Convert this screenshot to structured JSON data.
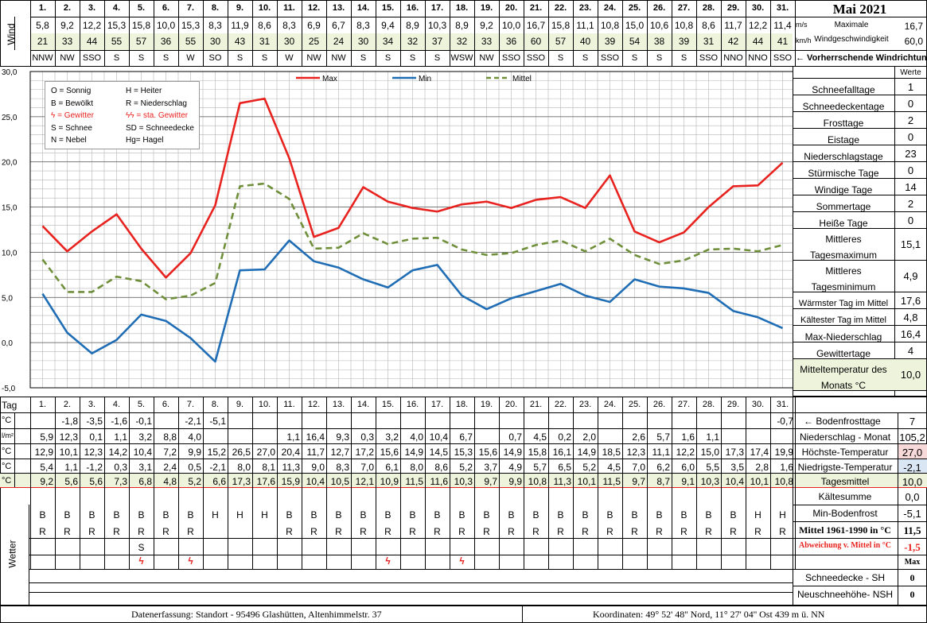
{
  "title": "Mai 2021",
  "days": [
    "1.",
    "2.",
    "3.",
    "4.",
    "5.",
    "6.",
    "7.",
    "8.",
    "9.",
    "10.",
    "11.",
    "12.",
    "13.",
    "14.",
    "15.",
    "16.",
    "17.",
    "18.",
    "19.",
    "20.",
    "21.",
    "22.",
    "23.",
    "24.",
    "25.",
    "26.",
    "27.",
    "28.",
    "29.",
    "30.",
    "31."
  ],
  "wind": {
    "label": "Wind",
    "ms": [
      "5,8",
      "9,2",
      "12,2",
      "15,3",
      "15,8",
      "10,0",
      "15,3",
      "8,3",
      "11,9",
      "8,6",
      "8,3",
      "6,9",
      "6,7",
      "8,3",
      "9,4",
      "8,9",
      "10,3",
      "8,9",
      "9,2",
      "10,0",
      "16,7",
      "15,8",
      "11,1",
      "10,8",
      "15,0",
      "10,6",
      "10,8",
      "8,6",
      "11,7",
      "12,2",
      "11,4"
    ],
    "kmh": [
      "21",
      "33",
      "44",
      "55",
      "57",
      "36",
      "55",
      "30",
      "43",
      "31",
      "30",
      "25",
      "24",
      "30",
      "34",
      "32",
      "37",
      "32",
      "33",
      "36",
      "60",
      "57",
      "40",
      "39",
      "54",
      "38",
      "39",
      "31",
      "42",
      "44",
      "41"
    ],
    "dir": [
      "NNW",
      "NW",
      "SSO",
      "S",
      "S",
      "S",
      "W",
      "SO",
      "S",
      "S",
      "W",
      "NW",
      "NW",
      "S",
      "S",
      "S",
      "S",
      "WSW",
      "NW",
      "SSO",
      "SSO",
      "S",
      "S",
      "SSO",
      "S",
      "S",
      "S",
      "SSO",
      "NNO",
      "NNO",
      "SSO"
    ],
    "unit_ms": "m/s",
    "unit_kmh": "km/h",
    "max_label": "Maximale",
    "speed_label": "Windgeschwindigkeit",
    "max_ms": "16,7",
    "max_kmh": "60,0",
    "dir_note": "← Vorherrschende Windrichtung"
  },
  "legend_box": [
    [
      "O = Sonnig",
      "H = Heiter"
    ],
    [
      "B = Bewölkt",
      "R = Niederschlag"
    ],
    [
      "ϟ = Gewitter",
      "ϟϟ = sta. Gewitter"
    ],
    [
      "S = Schnee",
      "SD = Schneedecke"
    ],
    [
      "N = Nebel",
      "Hg= Hagel"
    ]
  ],
  "chart_data": {
    "type": "line",
    "x": [
      "1.",
      "2.",
      "3.",
      "4.",
      "5.",
      "6.",
      "7.",
      "8.",
      "9.",
      "10.",
      "11.",
      "12.",
      "13.",
      "14.",
      "15.",
      "16.",
      "17.",
      "18.",
      "19.",
      "20.",
      "21.",
      "22.",
      "23.",
      "24.",
      "25.",
      "26.",
      "27.",
      "28.",
      "29.",
      "30.",
      "31."
    ],
    "ylim": [
      -5,
      30
    ],
    "yticks": [
      "30,0",
      "25,0",
      "20,0",
      "15,0",
      "10,0",
      "5,0",
      "0,0",
      "-5,0"
    ],
    "grid": true,
    "legend_position": "top",
    "series": [
      {
        "name": "Max",
        "color": "#e8231f",
        "dash": false,
        "values": [
          12.9,
          10.1,
          12.3,
          14.2,
          10.4,
          7.2,
          9.9,
          15.2,
          26.5,
          27.0,
          20.4,
          11.7,
          12.7,
          17.2,
          15.6,
          14.9,
          14.5,
          15.3,
          15.6,
          14.9,
          15.8,
          16.1,
          14.9,
          18.5,
          12.3,
          11.1,
          12.2,
          15.0,
          17.3,
          17.4,
          19.9
        ]
      },
      {
        "name": "Min",
        "color": "#1f6db5",
        "dash": false,
        "values": [
          5.4,
          1.1,
          -1.2,
          0.3,
          3.1,
          2.4,
          0.5,
          -2.1,
          8.0,
          8.1,
          11.3,
          9.0,
          8.3,
          7.0,
          6.1,
          8.0,
          8.6,
          5.2,
          3.7,
          4.9,
          5.7,
          6.5,
          5.2,
          4.5,
          7.0,
          6.2,
          6.0,
          5.5,
          3.5,
          2.8,
          1.6
        ]
      },
      {
        "name": "Mittel",
        "color": "#6f8f3a",
        "dash": true,
        "values": [
          9.2,
          5.6,
          5.6,
          7.3,
          6.8,
          4.8,
          5.2,
          6.6,
          17.3,
          17.6,
          15.9,
          10.4,
          10.5,
          12.1,
          10.9,
          11.5,
          11.6,
          10.3,
          9.7,
          9.9,
          10.8,
          11.3,
          10.1,
          11.5,
          9.7,
          8.7,
          9.1,
          10.3,
          10.4,
          10.1,
          10.8
        ]
      }
    ]
  },
  "stats": {
    "header": "Werte",
    "rows": [
      {
        "label": "Schneefalltage",
        "value": "1"
      },
      {
        "label": "Schneedeckentage",
        "value": "0"
      },
      {
        "label": "Frosttage",
        "value": "2"
      },
      {
        "label": "Eistage",
        "value": "0"
      },
      {
        "label": "Niederschlagstage",
        "value": "23"
      },
      {
        "label": "Stürmische Tage",
        "value": "0"
      },
      {
        "label": "Windige Tage",
        "value": "14"
      },
      {
        "label": "Sommertage",
        "value": "2"
      },
      {
        "label": "Heiße Tage",
        "value": "0"
      },
      {
        "label": "Mittleres Tagesmaximum",
        "value": "15,1"
      },
      {
        "label": "Mittleres Tagesminimum",
        "value": "4,9"
      },
      {
        "label": "Wärmster Tag im Mittel",
        "value": "17,6"
      },
      {
        "label": "Kältester Tag im Mittel",
        "value": "4,8"
      },
      {
        "label": "Max-Niederschlag",
        "value": "16,4"
      },
      {
        "label": "Gewittertage",
        "value": "4"
      },
      {
        "label": "Mitteltemperatur des Monats °C",
        "value": "10,0"
      }
    ]
  },
  "table": {
    "tag_label": "Tag",
    "frost": {
      "unit": "°C",
      "values": [
        "",
        "-1,8",
        "-3,5",
        "-1,6",
        "-0,1",
        "",
        "-2,1",
        "-5,1",
        "",
        "",
        "",
        "",
        "",
        "",
        "",
        "",
        "",
        "",
        "",
        "",
        "",
        "",
        "",
        "",
        "",
        "",
        "",
        "",
        "",
        "",
        "-0,7"
      ],
      "label": "← Bodenfrosttage",
      "value": "7"
    },
    "rain": {
      "unit": "l/m²",
      "values": [
        "5,9",
        "12,3",
        "0,1",
        "1,1",
        "3,2",
        "8,8",
        "4,0",
        "",
        "",
        "",
        "1,1",
        "16,4",
        "9,3",
        "0,3",
        "3,2",
        "4,0",
        "10,4",
        "6,7",
        "",
        "0,7",
        "4,5",
        "0,2",
        "2,0",
        "",
        "2,6",
        "5,7",
        "1,6",
        "1,1",
        "",
        "",
        ""
      ],
      "label": "Niederschlag - Monat",
      "value": "105,2"
    },
    "tmax": {
      "unit": "°C",
      "values": [
        "12,9",
        "10,1",
        "12,3",
        "14,2",
        "10,4",
        "7,2",
        "9,9",
        "15,2",
        "26,5",
        "27,0",
        "20,4",
        "11,7",
        "12,7",
        "17,2",
        "15,6",
        "14,9",
        "14,5",
        "15,3",
        "15,6",
        "14,9",
        "15,8",
        "16,1",
        "14,9",
        "18,5",
        "12,3",
        "11,1",
        "12,2",
        "15,0",
        "17,3",
        "17,4",
        "19,9"
      ],
      "label": "Höchste-Temperatur",
      "value": "27,0"
    },
    "tmin": {
      "unit": "°C",
      "values": [
        "5,4",
        "1,1",
        "-1,2",
        "0,3",
        "3,1",
        "2,4",
        "0,5",
        "-2,1",
        "8,0",
        "8,1",
        "11,3",
        "9,0",
        "8,3",
        "7,0",
        "6,1",
        "8,0",
        "8,6",
        "5,2",
        "3,7",
        "4,9",
        "5,7",
        "6,5",
        "5,2",
        "4,5",
        "7,0",
        "6,2",
        "6,0",
        "5,5",
        "3,5",
        "2,8",
        "1,6"
      ],
      "label": "Niedrigste-Temperatur",
      "value": "-2,1"
    },
    "tmean": {
      "unit": "°C",
      "values": [
        "9,2",
        "5,6",
        "5,6",
        "7,3",
        "6,8",
        "4,8",
        "5,2",
        "6,6",
        "17,3",
        "17,6",
        "15,9",
        "10,4",
        "10,5",
        "12,1",
        "10,9",
        "11,5",
        "11,6",
        "10,3",
        "9,7",
        "9,9",
        "10,8",
        "11,3",
        "10,1",
        "11,5",
        "9,7",
        "8,7",
        "9,1",
        "10,3",
        "10,4",
        "10,1",
        "10,8"
      ],
      "label": "Tagesmittel",
      "value": "10,0"
    }
  },
  "weather": {
    "label": "Wetter",
    "row1": [
      "B",
      "B",
      "B",
      "B",
      "B",
      "B",
      "B",
      "H",
      "H",
      "H",
      "B",
      "B",
      "B",
      "B",
      "B",
      "B",
      "B",
      "B",
      "B",
      "B",
      "B",
      "B",
      "B",
      "B",
      "B",
      "B",
      "B",
      "B",
      "B",
      "H",
      "H"
    ],
    "row2": [
      "R",
      "R",
      "R",
      "R",
      "R",
      "R",
      "R",
      "",
      "",
      "",
      "R",
      "R",
      "R",
      "R",
      "R",
      "R",
      "R",
      "R",
      "R",
      "R",
      "R",
      "R",
      "R",
      "R",
      "R",
      "R",
      "R",
      "R",
      "R",
      "R",
      "R"
    ],
    "row3": [
      "",
      "",
      "",
      "",
      "S",
      "",
      "",
      "",
      "",
      "",
      "",
      "",
      "",
      "",
      "",
      "",
      "",
      "",
      "",
      "",
      "",
      "",
      "",
      "",
      "",
      "",
      "",
      "",
      "",
      "",
      ""
    ],
    "row4": [
      "",
      "",
      "",
      "",
      "ϟ",
      "",
      "ϟ",
      "",
      "",
      "",
      "",
      "",
      "",
      "",
      "ϟ",
      "",
      "",
      "ϟ",
      "",
      "",
      "",
      "",
      "",
      "",
      "",
      "",
      "",
      "",
      "",
      "",
      ""
    ]
  },
  "side2": [
    {
      "label": "Kältesumme",
      "value": "0,0"
    },
    {
      "label": "Min-Bodenfrost",
      "value": "-5,1"
    },
    {
      "label": "Mittel 1961-1990 in °C",
      "value": "11,5"
    },
    {
      "label": "Abweichung v. Mittel in °C",
      "value": "-1,5"
    },
    {
      "label": "",
      "value": "Max"
    },
    {
      "label": "Schneedecke -  SH",
      "value": "0"
    },
    {
      "label": "Neuschneehöhe- NSH",
      "value": "0"
    }
  ],
  "footer": {
    "left": "Datenerfassung:  Standort -  95496  Glashütten, Altenhimmelstr. 37",
    "right": "Koordinaten:  49° 52' 48'' Nord,   11° 27' 04'' Ost   439 m ü. NN"
  },
  "colors": {
    "max": "#e8231f",
    "min": "#1f6db5",
    "mittel": "#6f8f3a",
    "grid": "#9a9a9a",
    "green_bg": "#eef3dc",
    "red_text": "#e8231f"
  }
}
